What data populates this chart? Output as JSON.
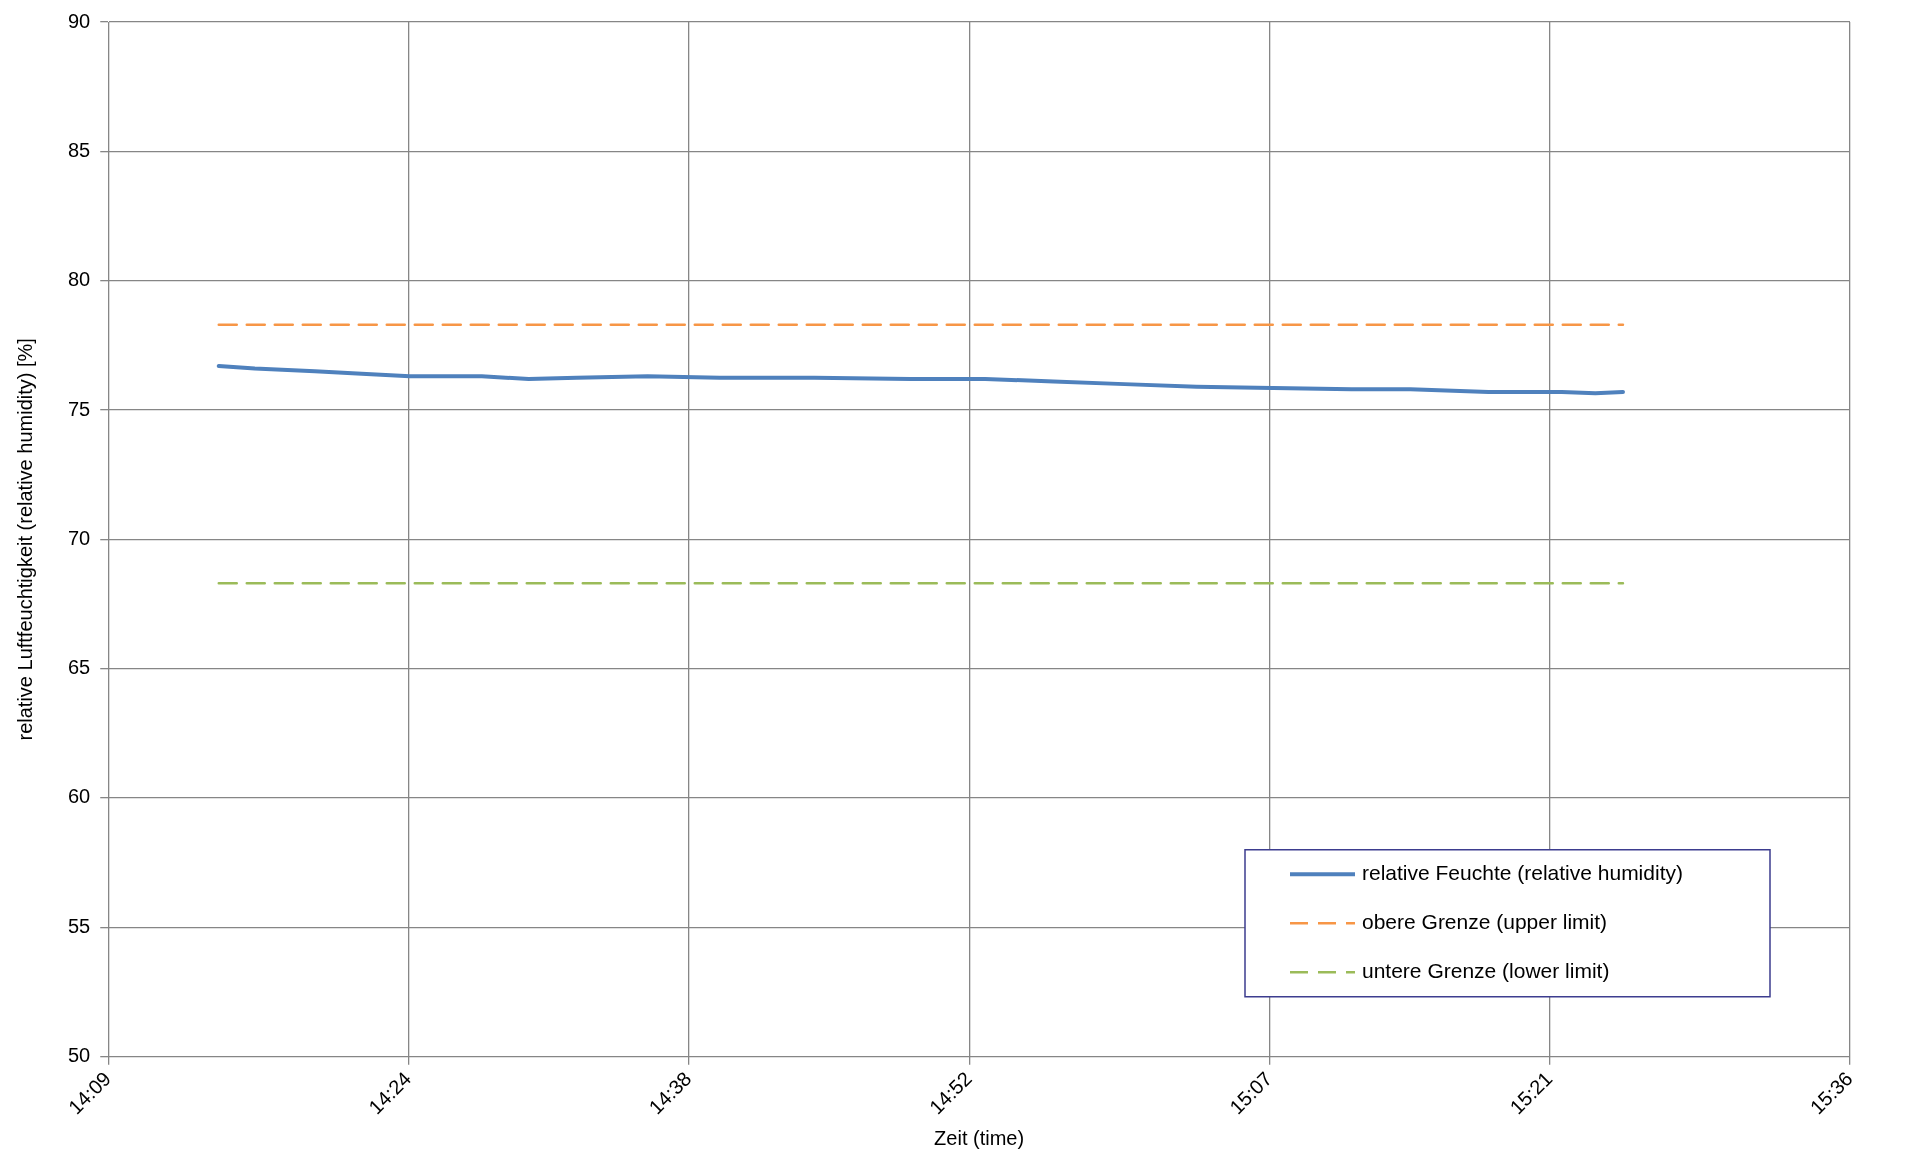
{
  "chart_data": {
    "type": "line",
    "xlabel": "Zeit (time)",
    "ylabel": "relative Luftfeuchtigkeit (relative humidity) [%]",
    "xlim": [
      14.15,
      15.6
    ],
    "xticks": [
      {
        "value": 14.15,
        "label": "14:09"
      },
      {
        "value": 14.4,
        "label": "14:24"
      },
      {
        "value": 14.6333,
        "label": "14:38"
      },
      {
        "value": 14.8667,
        "label": "14:52"
      },
      {
        "value": 15.1167,
        "label": "15:07"
      },
      {
        "value": 15.35,
        "label": "15:21"
      },
      {
        "value": 15.6,
        "label": "15:36"
      }
    ],
    "ylim": [
      50,
      90
    ],
    "yticks": [
      50,
      55,
      60,
      65,
      70,
      75,
      80,
      85,
      90
    ],
    "grid": true,
    "legend": "bottom right",
    "marker": "none",
    "series": [
      {
        "name": "relative Feuchte (relative humidity)",
        "color": "#4f81bd",
        "line_style": "solid",
        "x": [
          14.242,
          14.272,
          14.322,
          14.361,
          14.401,
          14.461,
          14.5,
          14.54,
          14.599,
          14.659,
          14.738,
          14.818,
          14.88,
          14.937,
          14.996,
          15.056,
          15.12,
          15.185,
          15.234,
          15.299,
          15.36,
          15.388,
          15.411
        ],
        "values": [
          76.7,
          76.6,
          76.5,
          76.4,
          76.3,
          76.3,
          76.2,
          76.25,
          76.3,
          76.25,
          76.25,
          76.2,
          76.2,
          76.1,
          76.0,
          75.9,
          75.85,
          75.8,
          75.8,
          75.7,
          75.7,
          75.65,
          75.7
        ]
      },
      {
        "name": "obere Grenze (upper limit)",
        "color": "#f79646",
        "line_style": "dashed",
        "x": [
          14.242,
          15.411
        ],
        "values": [
          78.3,
          78.3
        ]
      },
      {
        "name": "untere Grenze (lower limit)",
        "color": "#9bbb59",
        "line_style": "dashed",
        "x": [
          14.242,
          15.411
        ],
        "values": [
          68.3,
          68.3
        ]
      }
    ]
  }
}
